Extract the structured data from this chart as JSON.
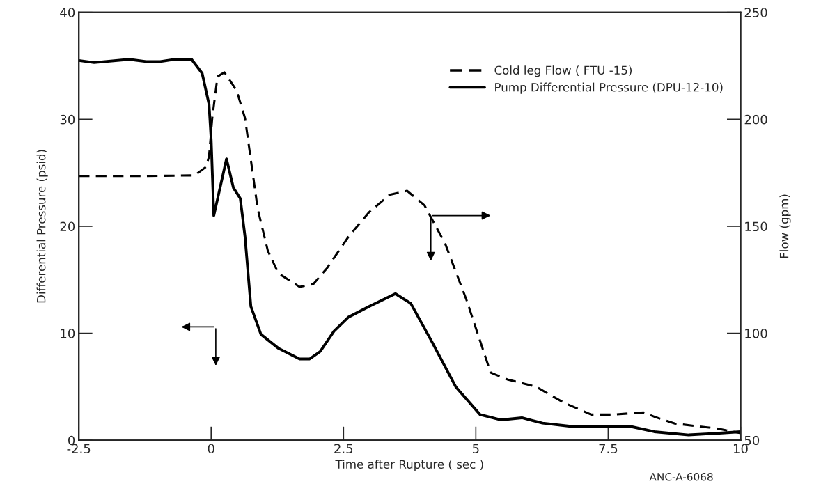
{
  "chart_data": {
    "type": "line",
    "xlabel": "Time after Rupture ( sec )",
    "ylabel": "Differential Pressure (psid)",
    "y2label": "Flow (gpm)",
    "xlim": [
      -2.5,
      10
    ],
    "xticks": [
      -2.5,
      0,
      2.5,
      5,
      7.5,
      10
    ],
    "ylim": [
      0,
      40
    ],
    "yticks": [
      0,
      10,
      20,
      30,
      40
    ],
    "y2lim": [
      50,
      250
    ],
    "y2ticks": [
      50,
      100,
      150,
      200,
      250
    ],
    "legend": "top right",
    "grid": false,
    "annotations": [
      "ANC-A-6068"
    ],
    "series": [
      {
        "name": "Cold leg Flow ( FTU -15)",
        "color": "#000000",
        "axis": "y2",
        "line_style": "dashed",
        "x": [
          -2.5,
          -1.36,
          -0.31,
          -0.1,
          -0.04,
          0.02,
          0.12,
          0.25,
          0.48,
          0.64,
          0.75,
          0.88,
          1.07,
          1.27,
          1.67,
          1.93,
          2.19,
          2.59,
          2.98,
          3.37,
          3.7,
          4.03,
          4.42,
          4.82,
          5.28,
          5.61,
          6.13,
          6.66,
          7.18,
          7.58,
          8.17,
          8.37,
          8.76,
          9.55,
          10
        ],
        "values": [
          173.5,
          173.5,
          173.8,
          177.7,
          182.6,
          200.5,
          220,
          222,
          213.5,
          200.5,
          181,
          158,
          138.6,
          128,
          121.7,
          123,
          130.5,
          145,
          156.5,
          164.7,
          166.6,
          159.8,
          141.9,
          115.8,
          81.6,
          78.3,
          75.1,
          67.6,
          62,
          62,
          63,
          61,
          57.8,
          55.5,
          53.3
        ]
      },
      {
        "name": "Pump Differential Pressure (DPU-12-10)",
        "color": "#000000",
        "axis": "y",
        "line_style": "solid",
        "x": [
          -2.5,
          -2.21,
          -1.55,
          -1.23,
          -0.96,
          -0.7,
          -0.37,
          -0.17,
          -0.04,
          0,
          0.05,
          0.29,
          0.42,
          0.55,
          0.64,
          0.75,
          0.94,
          1.27,
          1.67,
          1.86,
          2.06,
          2.32,
          2.59,
          2.98,
          3.48,
          3.77,
          4.16,
          4.62,
          5.08,
          5.48,
          5.87,
          6.26,
          6.79,
          7.45,
          7.91,
          8.37,
          9.02,
          9.55,
          10
        ],
        "values": [
          35.5,
          35.3,
          35.6,
          35.4,
          35.4,
          35.6,
          35.6,
          34.3,
          31.4,
          28.1,
          21.0,
          26.3,
          23.6,
          22.6,
          19.0,
          12.5,
          9.9,
          8.6,
          7.6,
          7.6,
          8.3,
          10.2,
          11.5,
          12.5,
          13.7,
          12.8,
          9.3,
          5.0,
          2.4,
          1.9,
          2.1,
          1.6,
          1.3,
          1.3,
          1.3,
          0.8,
          0.5,
          0.65,
          0.8
        ]
      }
    ]
  }
}
